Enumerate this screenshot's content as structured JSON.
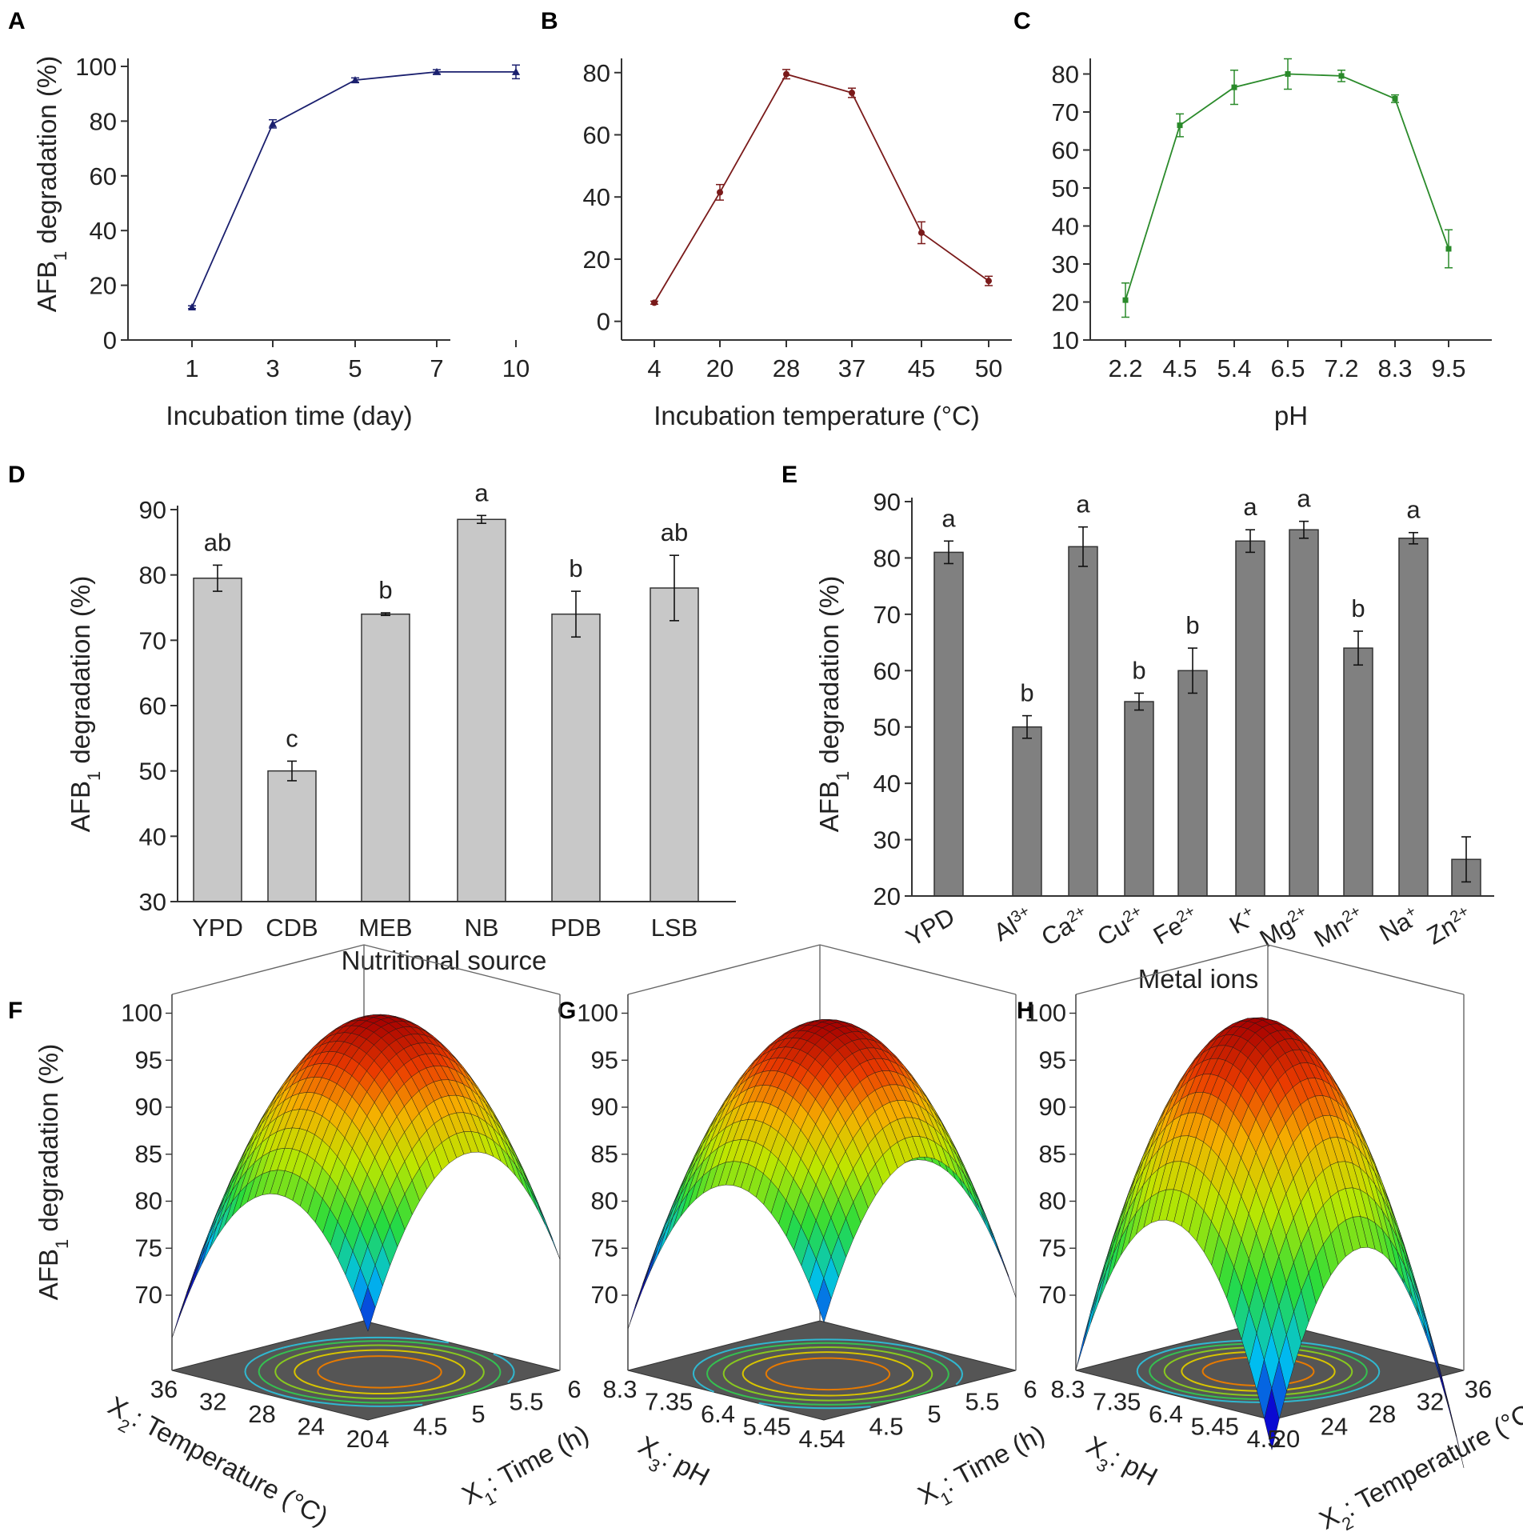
{
  "panel_labels": [
    "A",
    "B",
    "C",
    "D",
    "E",
    "F",
    "G",
    "H"
  ],
  "chart_data": [
    {
      "panel": "A",
      "type": "line",
      "xlabel": "Incubation time (day)",
      "ylabel_main": "AFB",
      "ylabel_sub": "1",
      "ylabel_rest": " degradation (%)",
      "categories": [
        "1",
        "3",
        "5",
        "7",
        "10"
      ],
      "values": [
        12,
        79,
        95,
        98,
        98
      ],
      "errors": [
        0.5,
        1.5,
        0.8,
        0.8,
        2.5
      ],
      "ylim": [
        0,
        100
      ],
      "yticks": [
        0,
        20,
        40,
        60,
        80,
        100
      ],
      "color": "#1a1f6e",
      "marker": "triangle"
    },
    {
      "panel": "B",
      "type": "line",
      "xlabel": "Incubation temperature (°C)",
      "categories": [
        "4",
        "20",
        "28",
        "37",
        "45",
        "50"
      ],
      "values": [
        6,
        41.5,
        79.5,
        73.5,
        28.5,
        13
      ],
      "errors": [
        0.5,
        2.5,
        1.5,
        1.5,
        3.5,
        1.5
      ],
      "ylim": [
        -6,
        82
      ],
      "yticks": [
        0,
        20,
        40,
        60,
        80
      ],
      "color": "#7a1a1a",
      "marker": "circle"
    },
    {
      "panel": "C",
      "type": "line",
      "xlabel": "pH",
      "categories": [
        "2.2",
        "4.5",
        "5.4",
        "6.5",
        "7.2",
        "8.3",
        "9.5"
      ],
      "values": [
        20.5,
        66.5,
        76.5,
        80,
        79.5,
        73.5,
        34
      ],
      "errors": [
        4.5,
        3,
        4.5,
        4,
        1.5,
        1,
        5
      ],
      "ylim": [
        10,
        82
      ],
      "yticks": [
        10,
        20,
        30,
        40,
        50,
        60,
        70,
        80
      ],
      "color": "#2a8a2a",
      "marker": "square"
    },
    {
      "panel": "D",
      "type": "bar",
      "xlabel": "Nutritional source",
      "categories": [
        "YPD",
        "CDB",
        "MEB",
        "NB",
        "PDB",
        "LSB"
      ],
      "values": [
        79.5,
        50,
        74,
        88.5,
        74,
        78
      ],
      "errors": [
        2,
        1.5,
        0.2,
        0.6,
        3.5,
        5
      ],
      "letters": [
        "ab",
        "c",
        "b",
        "a",
        "b",
        "ab"
      ],
      "ylim": [
        30,
        90
      ],
      "yticks": [
        30,
        40,
        50,
        60,
        70,
        80,
        90
      ],
      "color": "#c8c8c8"
    },
    {
      "panel": "E",
      "type": "bar",
      "xlabel": "Metal ions",
      "categories": [
        {
          "base": "YPD",
          "sup": ""
        },
        {
          "base": "Al",
          "sup": "3+"
        },
        {
          "base": "Ca",
          "sup": "2+"
        },
        {
          "base": "Cu",
          "sup": "2+"
        },
        {
          "base": "Fe",
          "sup": "2+"
        },
        {
          "base": "K",
          "sup": "+"
        },
        {
          "base": "Mg",
          "sup": "2+"
        },
        {
          "base": "Mn",
          "sup": "2+"
        },
        {
          "base": "Na",
          "sup": "+"
        },
        {
          "base": "Zn",
          "sup": "2+"
        }
      ],
      "values": [
        81,
        50,
        82,
        54.5,
        60,
        83,
        85,
        64,
        83.5,
        26.5
      ],
      "errors": [
        2,
        2,
        3.5,
        1.5,
        4,
        2,
        1.5,
        3,
        1,
        4
      ],
      "letters": [
        "a",
        "b",
        "a",
        "b",
        "b",
        "a",
        "a",
        "b",
        "a",
        ""
      ],
      "ylim": [
        20,
        90
      ],
      "yticks": [
        20,
        30,
        40,
        50,
        60,
        70,
        80,
        90
      ],
      "color": "#808080"
    },
    {
      "panel": "F",
      "type": "surface",
      "zticks": [
        "70",
        "75",
        "80",
        "85",
        "90",
        "95",
        "100"
      ],
      "left_ticks": [
        "36",
        "32",
        "28",
        "24",
        "20"
      ],
      "right_ticks": [
        "4",
        "4.5",
        "5",
        "5.5",
        "6"
      ],
      "left_label": {
        "main": "X",
        "sub": "2",
        "rest": ": Temperature (°C)"
      },
      "right_label": {
        "main": "X",
        "sub": "1",
        "rest": ": Time (h)"
      }
    },
    {
      "panel": "G",
      "type": "surface",
      "zticks": [
        "70",
        "75",
        "80",
        "85",
        "90",
        "95",
        "100"
      ],
      "left_ticks": [
        "8.3",
        "7.35",
        "6.4",
        "5.45",
        "4.5"
      ],
      "right_ticks": [
        "4",
        "4.5",
        "5",
        "5.5",
        "6"
      ],
      "left_label": {
        "main": "X",
        "sub": "3",
        "rest": ": pH"
      },
      "right_label": {
        "main": "X",
        "sub": "1",
        "rest": ": Time (h)"
      }
    },
    {
      "panel": "H",
      "type": "surface",
      "zticks": [
        "70",
        "75",
        "80",
        "85",
        "90",
        "95",
        "100"
      ],
      "left_ticks": [
        "8.3",
        "7.35",
        "6.4",
        "5.45",
        "4.5"
      ],
      "right_ticks": [
        "20",
        "24",
        "28",
        "32",
        "36"
      ],
      "left_label": {
        "main": "X",
        "sub": "3",
        "rest": ": pH"
      },
      "right_label": {
        "main": "X",
        "sub": "2",
        "rest": ": Temperature (°C)"
      }
    }
  ]
}
